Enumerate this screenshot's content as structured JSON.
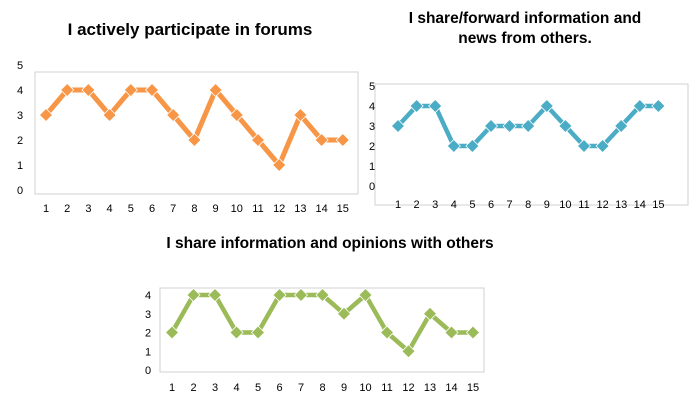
{
  "chart_data": [
    {
      "type": "line",
      "title": [
        "I actively participate  in forums"
      ],
      "x": [
        1,
        2,
        3,
        4,
        5,
        6,
        7,
        8,
        9,
        10,
        11,
        12,
        13,
        14,
        15
      ],
      "values": [
        3,
        4,
        4,
        3,
        4,
        4,
        3,
        2,
        4,
        3,
        2,
        1,
        3,
        2,
        2
      ],
      "ylim": [
        0,
        5
      ],
      "yticks": [
        0,
        1,
        2,
        3,
        4,
        5
      ],
      "grid": false,
      "legend": "none",
      "color": "#f79646",
      "marker": "diamond"
    },
    {
      "type": "line",
      "title": [
        "I share/forward information and",
        "news from others."
      ],
      "x": [
        1,
        2,
        3,
        4,
        5,
        6,
        7,
        8,
        9,
        10,
        11,
        12,
        13,
        14,
        15
      ],
      "values": [
        3,
        4,
        4,
        2,
        2,
        3,
        3,
        3,
        4,
        3,
        2,
        2,
        3,
        4,
        4
      ],
      "ylim": [
        0,
        5
      ],
      "yticks": [
        0,
        1,
        2,
        3,
        4,
        5
      ],
      "grid": false,
      "legend": "none",
      "color": "#4bacc6",
      "marker": "diamond"
    },
    {
      "type": "line",
      "title": [
        "I share information and opinions with others"
      ],
      "x": [
        1,
        2,
        3,
        4,
        5,
        6,
        7,
        8,
        9,
        10,
        11,
        12,
        13,
        14,
        15
      ],
      "values": [
        2,
        4,
        4,
        2,
        2,
        4,
        4,
        4,
        3,
        4,
        2,
        1,
        3,
        2,
        2
      ],
      "ylim": [
        0,
        4
      ],
      "yticks": [
        0,
        1,
        2,
        3,
        4
      ],
      "grid": false,
      "legend": "none",
      "color": "#9bbb59",
      "marker": "diamond"
    }
  ]
}
